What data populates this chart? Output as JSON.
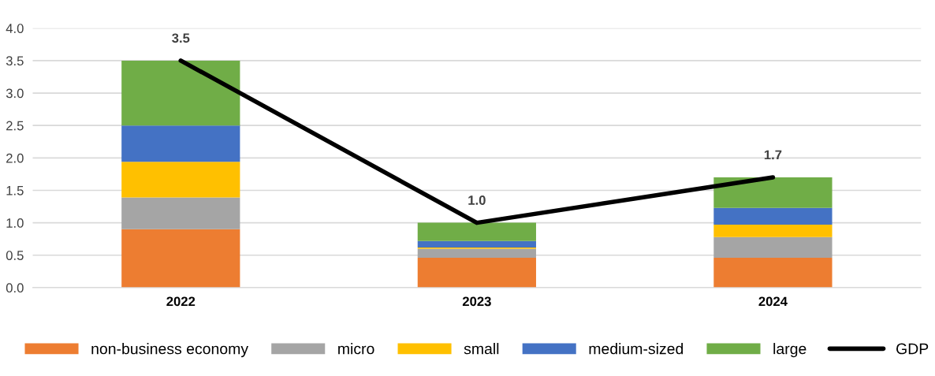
{
  "chart_data": {
    "type": "bar",
    "stacked": true,
    "categories": [
      "2022",
      "2023",
      "2024"
    ],
    "series": [
      {
        "name": "non-business economy",
        "color": "#ed7d31",
        "values": [
          0.9,
          0.46,
          0.46
        ]
      },
      {
        "name": "micro",
        "color": "#a5a5a5",
        "values": [
          0.49,
          0.14,
          0.32
        ]
      },
      {
        "name": "small",
        "color": "#ffc000",
        "values": [
          0.55,
          0.02,
          0.19
        ]
      },
      {
        "name": "medium-sized",
        "color": "#4472c4",
        "values": [
          0.56,
          0.1,
          0.26
        ]
      },
      {
        "name": "large",
        "color": "#70ad47",
        "values": [
          1.0,
          0.28,
          0.47
        ]
      },
      {
        "name": "GDP",
        "type": "line",
        "color": "#000000",
        "values": [
          3.5,
          1.0,
          1.7
        ],
        "value_labels": [
          "3.5",
          "1.0",
          "1.7"
        ]
      }
    ],
    "ylim": [
      0,
      4.0
    ],
    "yticks": [
      {
        "value": 0,
        "label": "0.0"
      },
      {
        "value": 0.5,
        "label": "0.5"
      },
      {
        "value": 1.0,
        "label": "1.0"
      },
      {
        "value": 1.5,
        "label": "1.5"
      },
      {
        "value": 2.0,
        "label": "2.0"
      },
      {
        "value": 2.5,
        "label": "2.5"
      },
      {
        "value": 3.0,
        "label": "3.0"
      },
      {
        "value": 3.5,
        "label": "3.5"
      },
      {
        "value": 4.0,
        "label": "4.0"
      }
    ],
    "grid": "y",
    "legend": "bottom"
  }
}
